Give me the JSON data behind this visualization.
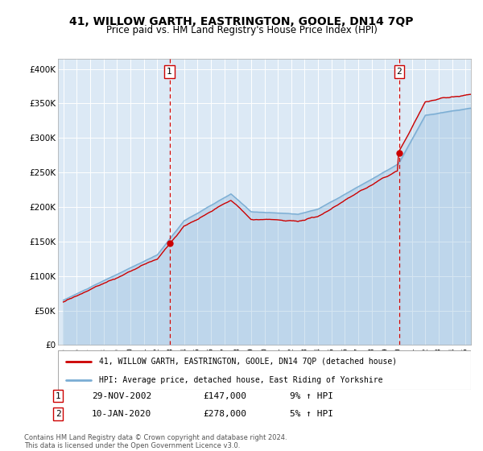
{
  "title": "41, WILLOW GARTH, EASTRINGTON, GOOLE, DN14 7QP",
  "subtitle": "Price paid vs. HM Land Registry's House Price Index (HPI)",
  "bg_color": "#dce9f5",
  "red_line_color": "#cc0000",
  "blue_line_color": "#7aadd4",
  "sale1_year": 2002.92,
  "sale2_year": 2020.04,
  "sale1_price": 147000,
  "sale2_price": 278000,
  "yticks": [
    0,
    50000,
    100000,
    150000,
    200000,
    250000,
    300000,
    350000,
    400000
  ],
  "xlim": [
    1994.6,
    2025.4
  ],
  "ylim": [
    0,
    415000
  ],
  "legend_label1": "41, WILLOW GARTH, EASTRINGTON, GOOLE, DN14 7QP (detached house)",
  "legend_label2": "HPI: Average price, detached house, East Riding of Yorkshire",
  "table_rows": [
    {
      "num": "1",
      "date": "29-NOV-2002",
      "price": "£147,000",
      "pct": "9% ↑ HPI"
    },
    {
      "num": "2",
      "date": "10-JAN-2020",
      "price": "£278,000",
      "pct": "5% ↑ HPI"
    }
  ],
  "footnote": "Contains HM Land Registry data © Crown copyright and database right 2024.\nThis data is licensed under the Open Government Licence v3.0."
}
